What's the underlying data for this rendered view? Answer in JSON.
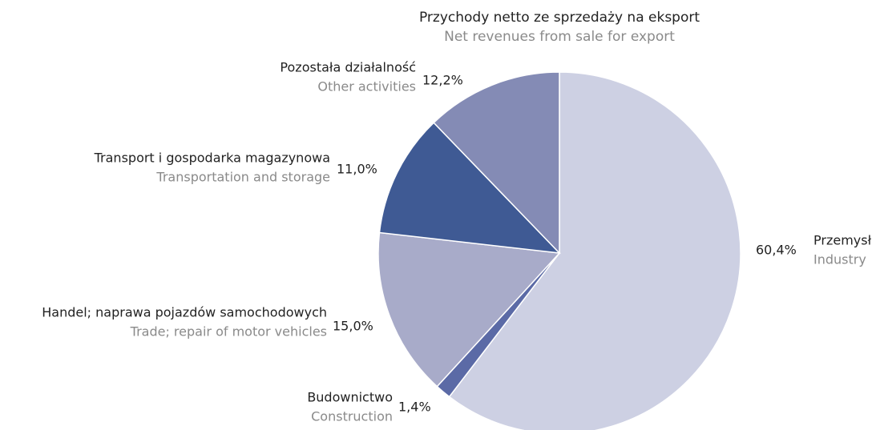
{
  "chart_data": {
    "type": "pie",
    "title": "Przychody netto ze sprzedaży na eksport",
    "subtitle": "Net revenues from sale for export",
    "categories": [
      "Przemysł",
      "Budownictwo",
      "Handel; naprawa pojazdów samochodowych",
      "Transport i gospodarka magazynowa",
      "Pozostała działalność"
    ],
    "categories_en": [
      "Industry",
      "Construction",
      "Trade; repair of motor vehicles",
      "Transportation and storage",
      "Other activities"
    ],
    "values": [
      60.4,
      1.4,
      15.0,
      11.0,
      12.2
    ],
    "value_labels": [
      "60,4%",
      "1,4%",
      "15,0%",
      "11,0%",
      "12,2%"
    ],
    "colors": [
      "#cdd0e3",
      "#5b6aa6",
      "#a8abc9",
      "#3f5a94",
      "#848bb5"
    ]
  }
}
